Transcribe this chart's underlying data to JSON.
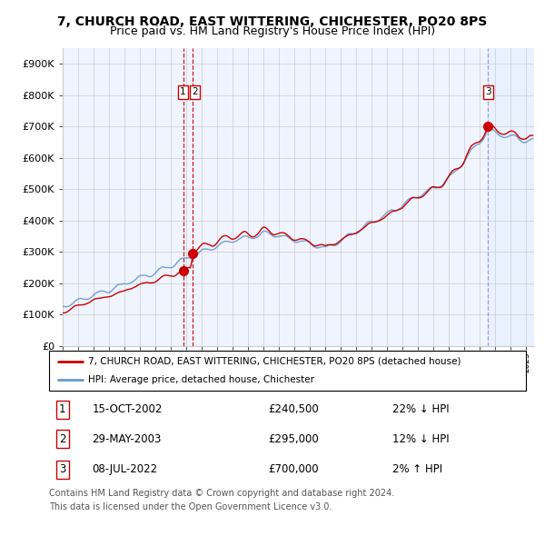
{
  "title1": "7, CHURCH ROAD, EAST WITTERING, CHICHESTER, PO20 8PS",
  "title2": "Price paid vs. HM Land Registry's House Price Index (HPI)",
  "legend_property": "7, CHURCH ROAD, EAST WITTERING, CHICHESTER, PO20 8PS (detached house)",
  "legend_hpi": "HPI: Average price, detached house, Chichester",
  "transactions": [
    {
      "num": 1,
      "date": "15-OCT-2002",
      "price": 240500,
      "pct": "22%",
      "dir": "↓"
    },
    {
      "num": 2,
      "date": "29-MAY-2003",
      "price": 295000,
      "pct": "12%",
      "dir": "↓"
    },
    {
      "num": 3,
      "date": "08-JUL-2022",
      "price": 700000,
      "pct": "2%",
      "dir": "↑"
    }
  ],
  "transaction_dates_decimal": [
    2002.79,
    2003.41,
    2022.52
  ],
  "ylim": [
    0,
    950000
  ],
  "xlim_start": 1995.0,
  "xlim_end": 2025.5,
  "yticks": [
    0,
    100000,
    200000,
    300000,
    400000,
    500000,
    600000,
    700000,
    800000,
    900000
  ],
  "ytick_labels": [
    "£0",
    "£100K",
    "£200K",
    "£300K",
    "£400K",
    "£500K",
    "£600K",
    "£700K",
    "£800K",
    "£900K"
  ],
  "xtick_years": [
    1995,
    1996,
    1997,
    1998,
    1999,
    2000,
    2001,
    2002,
    2003,
    2004,
    2005,
    2006,
    2007,
    2008,
    2009,
    2010,
    2011,
    2012,
    2013,
    2014,
    2015,
    2016,
    2017,
    2018,
    2019,
    2020,
    2021,
    2022,
    2023,
    2024,
    2025
  ],
  "color_property": "#cc0000",
  "color_hpi": "#6699cc",
  "color_vline12": "#cc0000",
  "color_vline3": "#9999bb",
  "shade_color": "#ddeeff",
  "dot_color": "#cc0000",
  "grid_color": "#cccccc",
  "background_color": "#ffffff",
  "plot_bg_color": "#f0f4ff",
  "footer1": "Contains HM Land Registry data © Crown copyright and database right 2024.",
  "footer2": "This data is licensed under the Open Government Licence v3.0.",
  "title_fontsize": 10,
  "subtitle_fontsize": 9,
  "axis_fontsize": 8,
  "footer_fontsize": 7
}
